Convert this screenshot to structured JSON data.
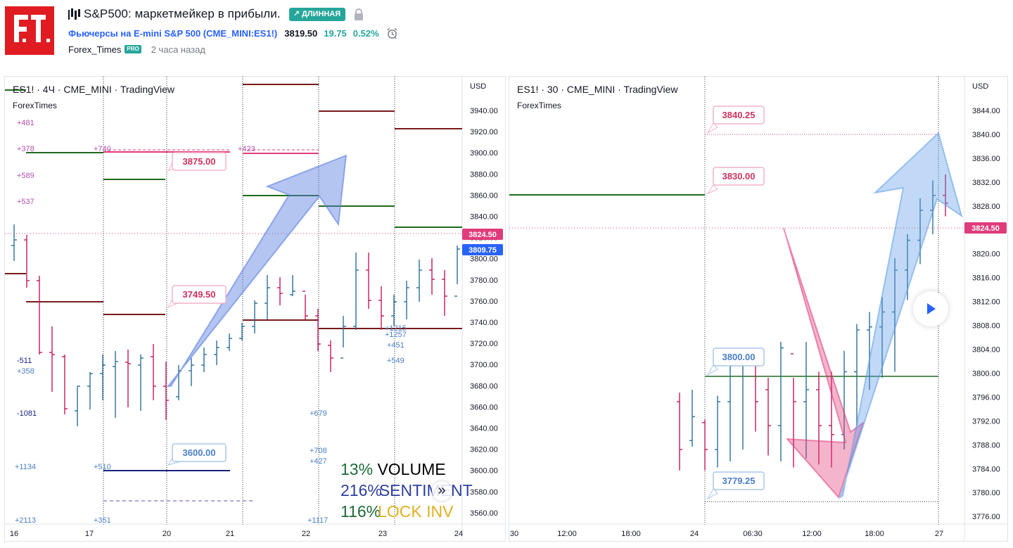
{
  "header": {
    "logo_text": "F.T.",
    "title": "S&P500: маркетмейкер в прибыли.",
    "badge": "↗ ДЛИННАЯ",
    "symbol": "Фьючерсы на E-mini S&P 500 (CME_MINI:ES1!)",
    "price": "3819.50",
    "change": "19.75",
    "change_pct": "0.52%",
    "author": "Forex_Times",
    "author_badge": "PRO",
    "time_ago": "2 часа назад",
    "icons": {
      "title": "chart-bars-icon",
      "lock": "lock-icon",
      "alarm": "alarm-clock-icon"
    }
  },
  "colors": {
    "accent": "#2962ff",
    "up": "#26a69a",
    "brand": "#e01b22",
    "pink": "#e03b7a",
    "blue_label": "#4a7ec7",
    "dark_red": "#7a1a1a",
    "green_line": "#1e6b1e",
    "navy": "#1a237e"
  },
  "left_panel": {
    "title": "ES1! · 4Ч · CME_MINI · TradingView",
    "subtitle": "ForexTimes",
    "currency": "USD",
    "y_ticks": [
      "3940.00",
      "3920.00",
      "3900.00",
      "3880.00",
      "3860.00",
      "3840.00",
      "3820.00",
      "3800.00",
      "3780.00",
      "3760.00",
      "3740.00",
      "3720.00",
      "3700.00",
      "3680.00",
      "3660.00",
      "3640.00",
      "3620.00",
      "3600.00",
      "3580.00",
      "3560.00"
    ],
    "x_ticks": [
      "16",
      "17",
      "20",
      "21",
      "22",
      "23",
      "24"
    ],
    "last_price_tag": "3824.50",
    "current_price_tag": "3809.75",
    "callouts": [
      "3875.00",
      "3749.50",
      "3600.00"
    ],
    "side_labels": [
      "+481",
      "+378",
      "+589",
      "+537",
      "-511",
      "+358",
      "-1081",
      "+1134",
      "+2113",
      "+740",
      "+510",
      "+351",
      "+423",
      "+1215",
      "+1257",
      "+451",
      "+549",
      "+679",
      "+708",
      "+427",
      "+1117"
    ],
    "legend": [
      {
        "pct": "13%",
        "label": "VOLUME",
        "pct_color": "#1e6b3a",
        "label_color": "#000000"
      },
      {
        "pct": "216%",
        "label": "SENTIMENT",
        "pct_color": "#2e3fa0",
        "label_color": "#2e3fa0"
      },
      {
        "pct": "116%",
        "label": "LOCK INV",
        "pct_color": "#1e6b3a",
        "label_color": "#e0b020"
      }
    ],
    "scroll_glyph": "»",
    "chart_data": {
      "type": "ohlc",
      "timeframe": "4H",
      "ylim": [
        3550,
        3960
      ],
      "x_ticks": [
        "16",
        "17",
        "20",
        "21",
        "22",
        "23",
        "24"
      ],
      "levels": [
        {
          "value": 3875.0,
          "type": "pink",
          "label": "3875.00"
        },
        {
          "value": 3749.5,
          "type": "pink",
          "label": "3749.50"
        },
        {
          "value": 3600.0,
          "type": "blue",
          "label": "3600.00"
        }
      ],
      "last_price": 3824.5,
      "current_price": 3809.75
    }
  },
  "right_panel": {
    "title": "ES1! · 30 · CME_MINI · TradingView",
    "subtitle": "ForexTimes",
    "currency": "USD",
    "y_ticks": [
      "3844.00",
      "3840.00",
      "3836.00",
      "3832.00",
      "3828.00",
      "3824.00",
      "3820.00",
      "3816.00",
      "3812.00",
      "3808.00",
      "3804.00",
      "3800.00",
      "3796.00",
      "3792.00",
      "3788.00",
      "3784.00",
      "3780.00",
      "3776.00"
    ],
    "x_ticks": [
      "30",
      "12:00",
      "18:00",
      "24",
      "06:30",
      "12:00",
      "18:00",
      "27"
    ],
    "last_price_tag": "3824.50",
    "callouts": [
      "3840.25",
      "3830.00",
      "3800.00",
      "3779.25"
    ],
    "chart_data": {
      "type": "ohlc",
      "timeframe": "30m",
      "ylim": [
        3775,
        3847
      ],
      "x_ticks": [
        "30",
        "12:00",
        "18:00",
        "24",
        "06:30",
        "12:00",
        "18:00",
        "27"
      ],
      "levels": [
        {
          "value": 3840.25,
          "type": "pink",
          "label": "3840.25"
        },
        {
          "value": 3830.0,
          "type": "pink",
          "label": "3830.00"
        },
        {
          "value": 3800.0,
          "type": "blue",
          "label": "3800.00"
        },
        {
          "value": 3779.25,
          "type": "blue",
          "label": "3779.25"
        }
      ],
      "last_price": 3824.5
    }
  }
}
